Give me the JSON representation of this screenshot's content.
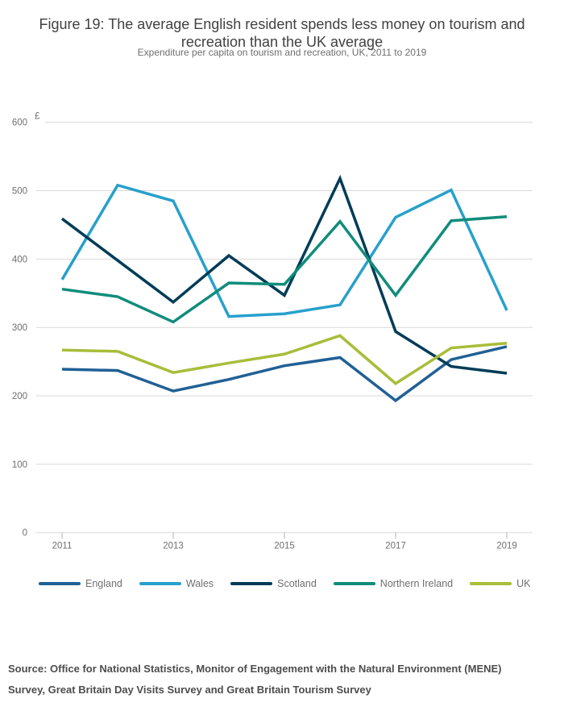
{
  "header": {
    "title": "Figure 19: The average English resident spends less money on tourism and recreation than the UK average",
    "subtitle": "Expenditure per capita on tourism and recreation, UK, 2011 to 2019"
  },
  "chart_data": {
    "type": "line",
    "title": "Figure 19: The average English resident spends less money on tourism and recreation than the UK average",
    "subtitle": "Expenditure per capita on tourism and recreation, UK, 2011 to 2019",
    "y_axis_unit": "£",
    "x": [
      2011,
      2012,
      2013,
      2014,
      2015,
      2016,
      2017,
      2018,
      2019
    ],
    "x_tick_labels": [
      "2011",
      "2013",
      "2015",
      "2017",
      "2019"
    ],
    "y_ticks": [
      0,
      100,
      200,
      300,
      400,
      500,
      600
    ],
    "ylim": [
      0,
      600
    ],
    "grid": true,
    "legend_position": "bottom",
    "series": [
      {
        "name": "England",
        "color": "#206095",
        "values": [
          239,
          237,
          207,
          224,
          244,
          256,
          193,
          253,
          272
        ]
      },
      {
        "name": "Wales",
        "color": "#27A0CC",
        "values": [
          370,
          508,
          485,
          316,
          320,
          333,
          461,
          501,
          325
        ]
      },
      {
        "name": "Scotland",
        "color": "#003C57",
        "values": [
          459,
          398,
          337,
          405,
          347,
          518,
          294,
          243,
          233
        ]
      },
      {
        "name": "Northern Ireland",
        "color": "#118C7B",
        "values": [
          356,
          345,
          308,
          365,
          363,
          455,
          347,
          456,
          462
        ]
      },
      {
        "name": "UK",
        "color": "#A8BD3A",
        "values": [
          267,
          265,
          234,
          248,
          261,
          288,
          218,
          270,
          277
        ]
      }
    ]
  },
  "footer": {
    "source": "Source: Office for National Statistics, Monitor of Engagement with the Natural Environment (MENE) Survey, Great Britain Day Visits Survey and Great Britain Tourism Survey"
  }
}
